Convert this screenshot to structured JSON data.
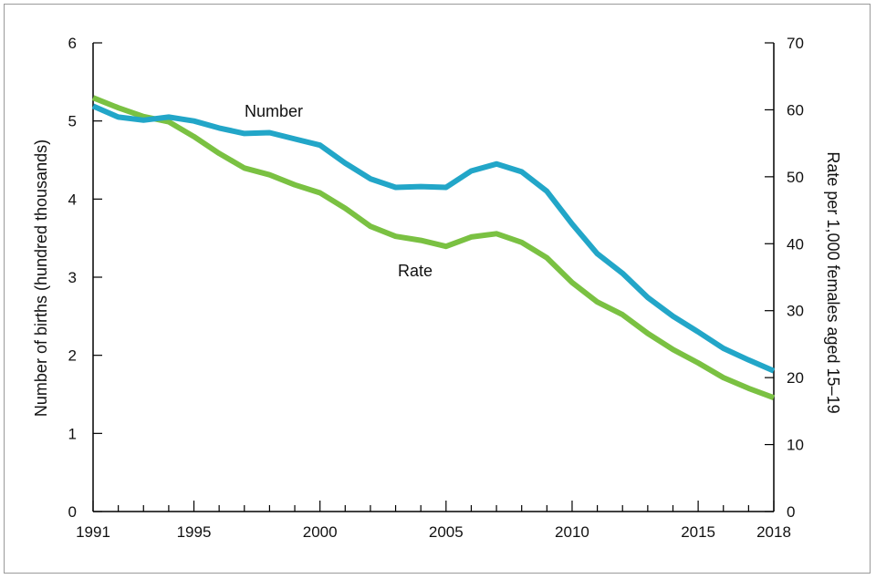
{
  "chart_data": {
    "type": "line",
    "title": "",
    "xlabel": "",
    "ylabel": "Number of births (hundred thousands)",
    "ylabel_right": "Rate per 1,000 females aged 15–19",
    "xlim": [
      1991,
      2018
    ],
    "ylim": [
      0,
      6
    ],
    "ylim_right": [
      0,
      70
    ],
    "x_ticks": [
      1991,
      1995,
      2000,
      2005,
      2010,
      2015,
      2018
    ],
    "y_ticks": [
      0,
      1,
      2,
      3,
      4,
      5,
      6
    ],
    "y_ticks_right": [
      0,
      10,
      20,
      30,
      40,
      50,
      60,
      70
    ],
    "grid": false,
    "legend": "none (series labeled inline)",
    "x": [
      1991,
      1992,
      1993,
      1994,
      1995,
      1996,
      1997,
      1998,
      1999,
      2000,
      2001,
      2002,
      2003,
      2004,
      2005,
      2006,
      2007,
      2008,
      2009,
      2010,
      2011,
      2012,
      2013,
      2014,
      2015,
      2016,
      2017,
      2018
    ],
    "series": [
      {
        "name": "Number",
        "axis": "left",
        "color": "#22a6c8",
        "values": [
          5.19,
          5.05,
          5.01,
          5.05,
          5.0,
          4.91,
          4.84,
          4.85,
          4.77,
          4.69,
          4.46,
          4.26,
          4.15,
          4.16,
          4.15,
          4.36,
          4.45,
          4.35,
          4.1,
          3.68,
          3.3,
          3.05,
          2.74,
          2.5,
          2.3,
          2.09,
          1.94,
          1.8
        ]
      },
      {
        "name": "Rate",
        "axis": "right",
        "color": "#7ac142",
        "values": [
          61.8,
          60.3,
          59.0,
          58.2,
          56.0,
          53.5,
          51.3,
          50.3,
          48.8,
          47.6,
          45.3,
          42.6,
          41.1,
          40.5,
          39.6,
          41.0,
          41.5,
          40.2,
          37.9,
          34.2,
          31.3,
          29.4,
          26.6,
          24.2,
          22.2,
          20.0,
          18.4,
          17.0
        ]
      }
    ]
  }
}
